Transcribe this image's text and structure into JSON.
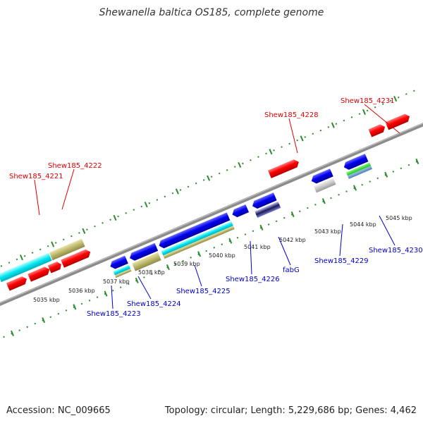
{
  "title": "Shewanella baltica OS185, complete genome",
  "footer": {
    "accession": "Accession: NC_009665",
    "stats": "Topology: circular; Length: 5,229,686 bp; Genes: 4,462"
  },
  "colors": {
    "forward_label": "#dd0000",
    "reverse_label": "#0000cc",
    "backbone": "#8c8c8c",
    "ticks": "#2e8b2e",
    "cds_forward": "#ff0000",
    "cds_reverse": "#0000ee",
    "feature_cyan": "#00e5ee",
    "feature_khaki": "#bdb76b"
  },
  "scale_labels": [
    "5035 kbp",
    "5036 kbp",
    "5037 kbp",
    "5038 kbp",
    "5039 kbp",
    "5040 kbp",
    "5041 kbp",
    "5042 kbp",
    "5043 kbp",
    "5044 kbp",
    "5045 kbp"
  ],
  "forward_gene_labels": [
    "Shew185_4221",
    "Shew185_4222",
    "Shew185_4228",
    "Shew185_4231"
  ],
  "reverse_gene_labels": [
    "Shew185_4223",
    "Shew185_4224",
    "Shew185_4225",
    "Shew185_4226",
    "fabG",
    "Shew185_4229",
    "Shew185_4230"
  ]
}
